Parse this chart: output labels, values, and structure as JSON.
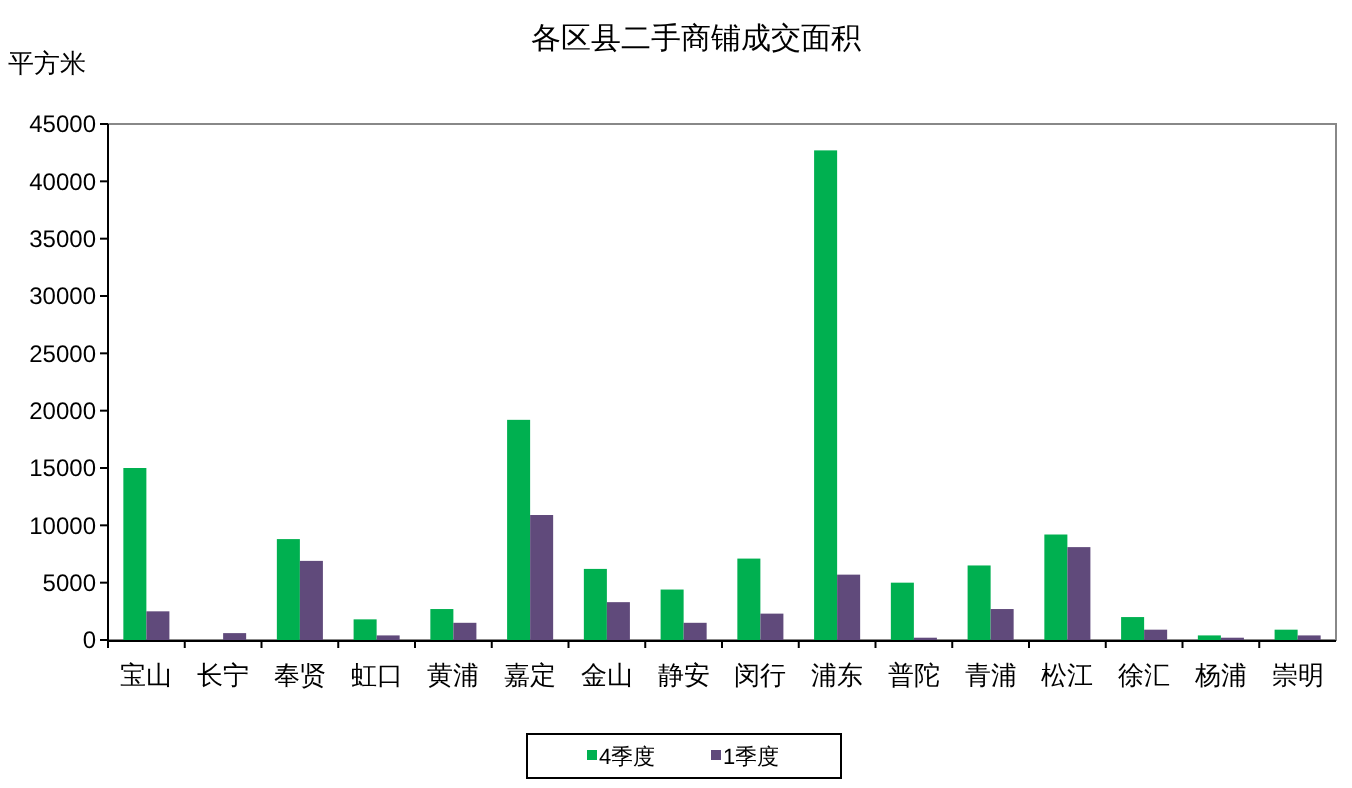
{
  "chart_data": {
    "type": "bar",
    "title": "各区县二手商铺成交面积",
    "ylabel": "平方米",
    "categories": [
      "宝山",
      "长宁",
      "奉贤",
      "虹口",
      "黄浦",
      "嘉定",
      "金山",
      "静安",
      "闵行",
      "浦东",
      "普陀",
      "青浦",
      "松江",
      "徐汇",
      "杨浦",
      "崇明"
    ],
    "series": [
      {
        "name": "4季度",
        "color": "#00b050",
        "values": [
          15000,
          0,
          8800,
          1800,
          2700,
          19200,
          6200,
          4400,
          7100,
          42700,
          5000,
          6500,
          9200,
          2000,
          400,
          900
        ]
      },
      {
        "name": "1季度",
        "color": "#604a7b",
        "values": [
          2500,
          600,
          6900,
          400,
          1500,
          10900,
          3300,
          1500,
          2300,
          5700,
          200,
          2700,
          8100,
          900,
          200,
          400
        ]
      }
    ],
    "ylim": [
      0,
      45000
    ],
    "yticks": [
      0,
      5000,
      10000,
      15000,
      20000,
      25000,
      30000,
      35000,
      40000,
      45000
    ],
    "grid": false,
    "legend": "bottom"
  }
}
